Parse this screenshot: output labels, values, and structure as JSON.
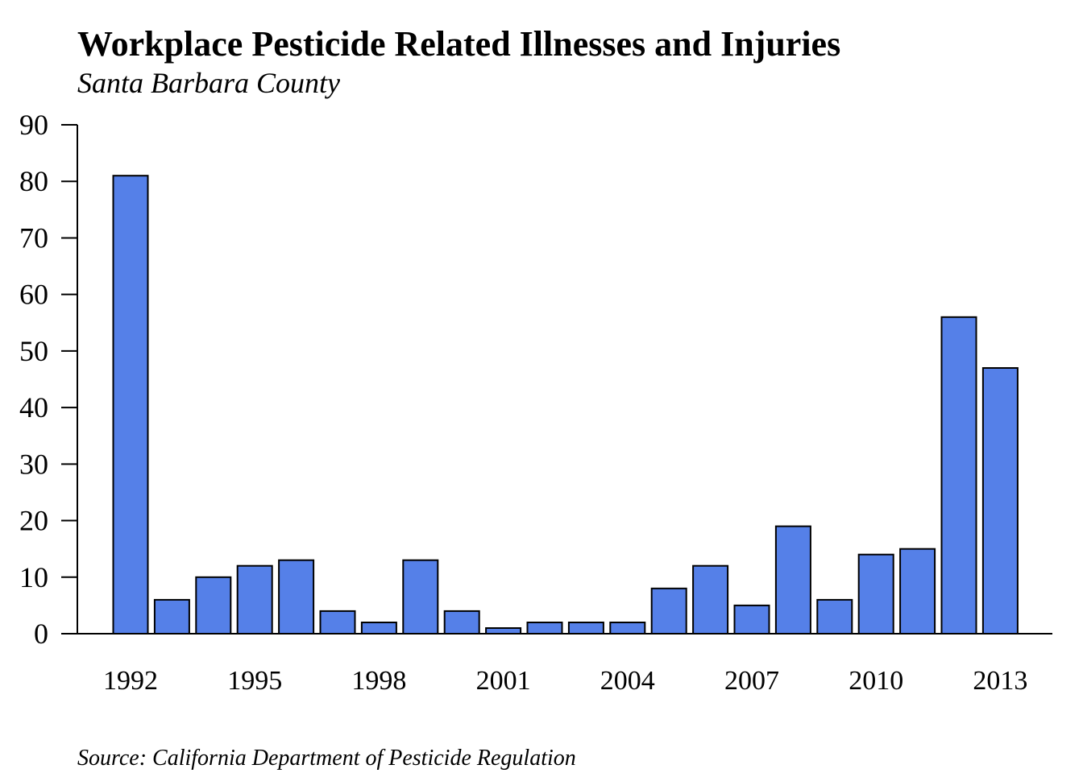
{
  "chart_data": {
    "type": "bar",
    "title": "Workplace Pesticide Related Illnesses and Injuries",
    "subtitle": "Santa Barbara County",
    "source": "Source: California Department of Pesticide Regulation",
    "xlabel": "",
    "ylabel": "",
    "categories": [
      "1992",
      "1993",
      "1994",
      "1995",
      "1996",
      "1997",
      "1998",
      "1999",
      "2000",
      "2001",
      "2002",
      "2003",
      "2004",
      "2005",
      "2006",
      "2007",
      "2008",
      "2009",
      "2010",
      "2011",
      "2012",
      "2013"
    ],
    "values": [
      81,
      6,
      10,
      12,
      13,
      4,
      2,
      13,
      4,
      1,
      2,
      2,
      2,
      8,
      12,
      5,
      19,
      6,
      14,
      15,
      56,
      47
    ],
    "x_tick_labels": [
      "1992",
      "1995",
      "1998",
      "2001",
      "2004",
      "2007",
      "2010",
      "2013"
    ],
    "y_tick_labels": [
      "0",
      "10",
      "20",
      "30",
      "40",
      "50",
      "60",
      "70",
      "80",
      "90"
    ],
    "ylim": [
      0,
      90
    ],
    "grid": false,
    "legend": "none",
    "bar_color": "#5580e8",
    "bar_stroke": "#000000"
  }
}
